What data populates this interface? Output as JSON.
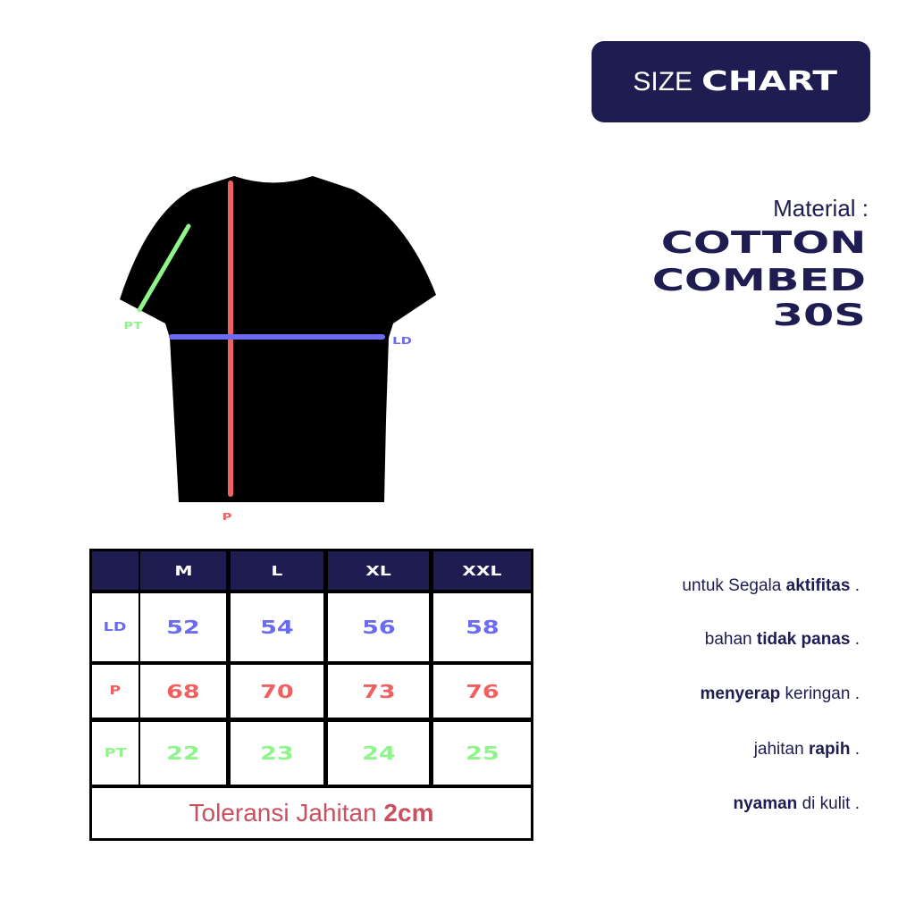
{
  "badge": {
    "light": "SIZE",
    "bold": "CHART"
  },
  "material": {
    "label": "Material :",
    "lines": [
      "COTTON",
      "COMBED",
      "30S"
    ]
  },
  "diagram": {
    "labels": {
      "pt": "PT",
      "ld": "LD",
      "p": "P"
    },
    "colors": {
      "shirt": "#000000",
      "ld": "#6b6bf0",
      "p": "#f06060",
      "pt": "#8ef58a"
    }
  },
  "table": {
    "headers": [
      "M",
      "L",
      "XL",
      "XXL"
    ],
    "rows": [
      {
        "label": "LD",
        "color": "#6b6bf0",
        "values": [
          "52",
          "54",
          "56",
          "58"
        ]
      },
      {
        "label": "P",
        "color": "#f06060",
        "values": [
          "68",
          "70",
          "73",
          "76"
        ]
      },
      {
        "label": "PT",
        "color": "#8ef58a",
        "values": [
          "22",
          "23",
          "24",
          "25"
        ]
      }
    ],
    "tolerance": {
      "text": "Toleransi Jahitan",
      "bold": "2cm"
    }
  },
  "features": [
    {
      "pre": "untuk Segala ",
      "bold": "aktifitas",
      "post": " ."
    },
    {
      "pre": "bahan ",
      "bold": "tidak panas",
      "post": " ."
    },
    {
      "pre": "",
      "bold": "menyerap",
      "post": " keringan ."
    },
    {
      "pre": "jahitan ",
      "bold": "rapih",
      "post": " ."
    },
    {
      "pre": "",
      "bold": "nyaman",
      "post": " di kulit ."
    }
  ],
  "colors": {
    "navy": "#1e1c50",
    "tolerance": "#c9505e"
  }
}
